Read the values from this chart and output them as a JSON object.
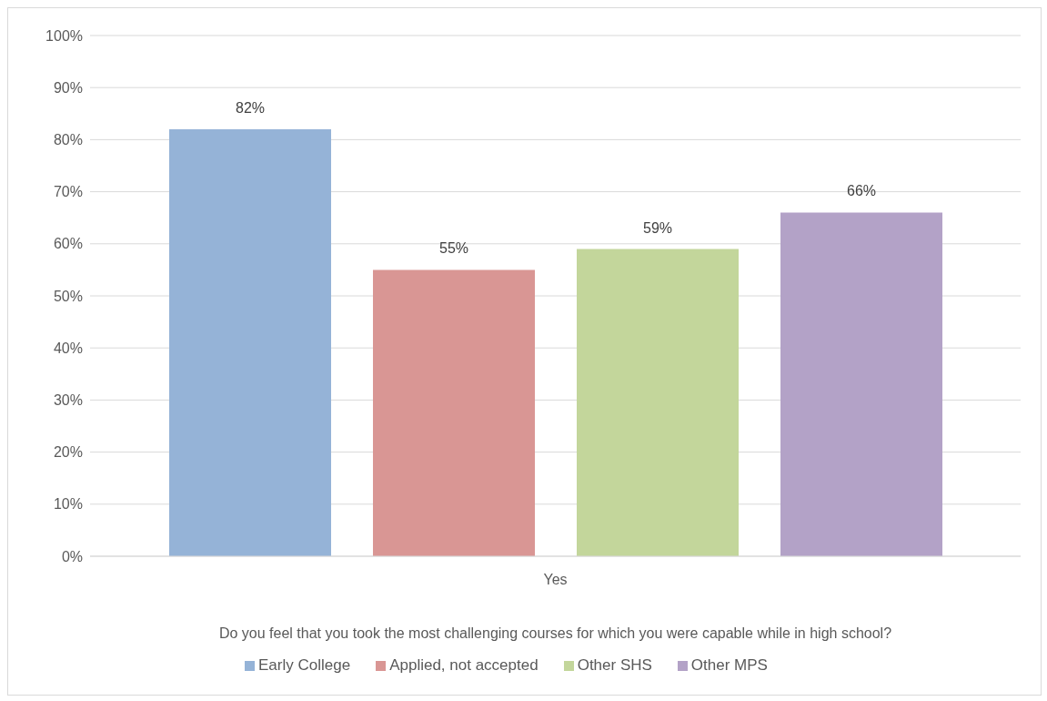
{
  "chart_data": {
    "type": "bar",
    "categories": [
      "Yes"
    ],
    "xlabel": "Do you feel that you took the most challenging courses for which you were capable while in high school?",
    "series": [
      {
        "name": "Early College",
        "color": "#95b3d7",
        "values": [
          82
        ],
        "value_labels": [
          "82%"
        ]
      },
      {
        "name": "Applied, not accepted",
        "color": "#d99694",
        "values": [
          55
        ],
        "value_labels": [
          "55%"
        ]
      },
      {
        "name": "Other SHS",
        "color": "#c3d69b",
        "values": [
          59
        ],
        "value_labels": [
          "59%"
        ]
      },
      {
        "name": "Other MPS",
        "color": "#b3a2c7",
        "values": [
          66
        ],
        "value_labels": [
          "66%"
        ]
      }
    ],
    "ylim": [
      0,
      100
    ],
    "yticks": [
      {
        "value": 0,
        "label": "0%"
      },
      {
        "value": 10,
        "label": "10%"
      },
      {
        "value": 20,
        "label": "20%"
      },
      {
        "value": 30,
        "label": "30%"
      },
      {
        "value": 40,
        "label": "40%"
      },
      {
        "value": 50,
        "label": "50%"
      },
      {
        "value": 60,
        "label": "60%"
      },
      {
        "value": 70,
        "label": "70%"
      },
      {
        "value": 80,
        "label": "80%"
      },
      {
        "value": 90,
        "label": "90%"
      },
      {
        "value": 100,
        "label": "100%"
      }
    ],
    "grid": "y",
    "legend": "bottom"
  }
}
